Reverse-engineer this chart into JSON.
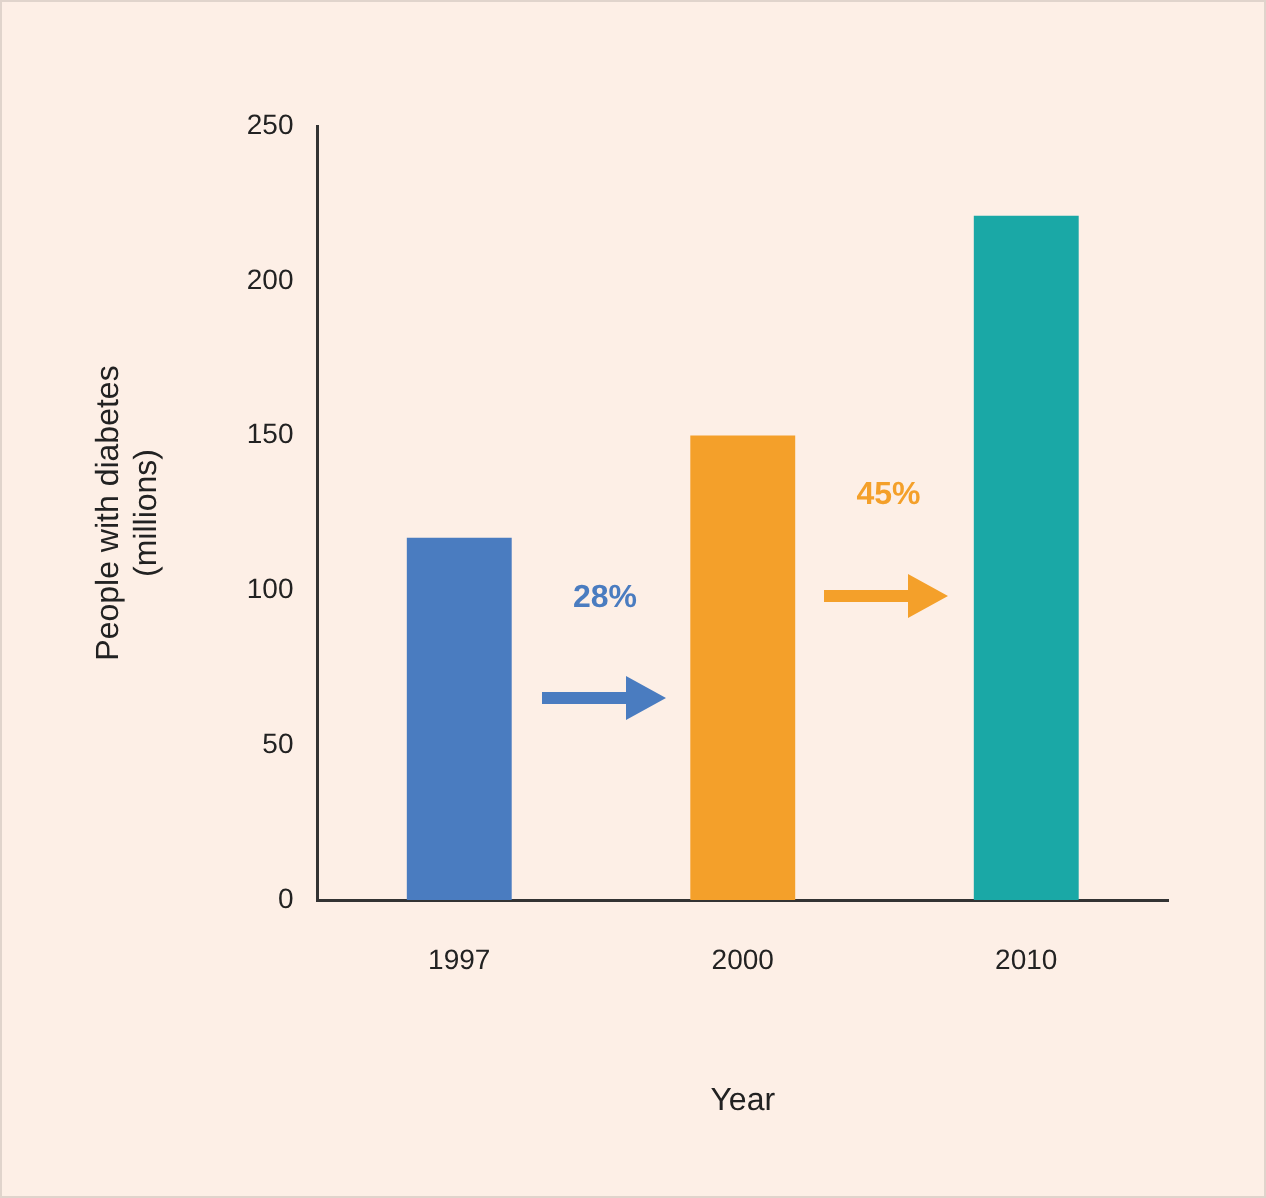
{
  "chart_data": {
    "type": "bar",
    "xlabel": "Year",
    "ylabel": "People with diabetes\n(millions)",
    "categories": [
      "1997",
      "2000",
      "2010"
    ],
    "values": [
      117,
      150,
      221
    ],
    "colors": [
      "#4a7cc0",
      "#f4a02a",
      "#1aa8a6"
    ],
    "ylim": [
      0,
      250
    ],
    "yticks": [
      0,
      50,
      100,
      150,
      200,
      250
    ],
    "annotations": [
      "28%",
      "45%"
    ]
  }
}
